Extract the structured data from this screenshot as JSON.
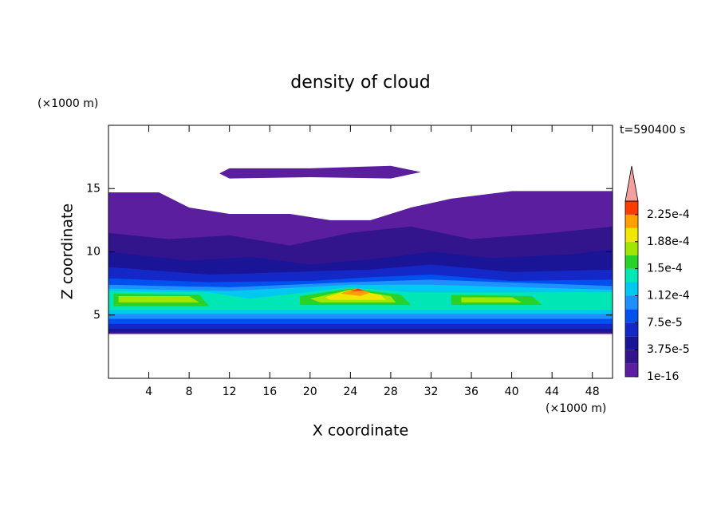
{
  "chart_data": {
    "type": "contour",
    "title": "density of cloud",
    "x_label": "X coordinate",
    "y_label": "Z coordinate",
    "x_unit": "(×1000 m)",
    "y_unit": "(×1000 m)",
    "time_label": "t=590400 s",
    "xlim": [
      0,
      50
    ],
    "xticks": [
      4,
      8,
      12,
      16,
      20,
      24,
      28,
      32,
      36,
      40,
      44,
      48
    ],
    "ylim": [
      0,
      20
    ],
    "yticks": [
      5,
      10,
      15
    ],
    "colorbar": {
      "levels": [
        1e-16,
        1.875e-05,
        3.75e-05,
        5.625e-05,
        7.5e-05,
        9.375e-05,
        0.0001125,
        0.00013125,
        0.00015,
        0.00016875,
        0.0001875,
        0.00020625,
        0.000225,
        0.00024375
      ],
      "colors": [
        "#5a1e9e",
        "#32148c",
        "#1a1496",
        "#1428c8",
        "#0050f0",
        "#1e90ff",
        "#00c8f0",
        "#00e6b4",
        "#28d228",
        "#a0e600",
        "#f0e600",
        "#ffa000",
        "#ff3c00"
      ],
      "extend_color": "#f4a0a0",
      "ticks": [
        1e-16,
        {
          "value": 3.75e-05,
          "label": "3.75e-5"
        },
        {
          "value": 7.5e-05,
          "label": "7.5e-5"
        },
        {
          "value": 0.0001125,
          "label": "1.12e-4"
        },
        {
          "value": 0.00015,
          "label": "1.5e-4"
        },
        {
          "value": 0.0001875,
          "label": "1.88e-4"
        },
        {
          "value": 0.000225,
          "label": "2.25e-4"
        }
      ]
    },
    "contours": [
      {
        "level": 1e-16,
        "x": [
          0,
          5,
          8,
          12,
          18,
          22,
          26,
          30,
          34,
          40,
          50,
          50,
          0
        ],
        "z": [
          14.7,
          14.7,
          13.5,
          13,
          13,
          12.5,
          12.5,
          13.5,
          14.2,
          14.8,
          14.8,
          3.5,
          3.5
        ]
      },
      {
        "level": 1e-16,
        "x": [
          11,
          12,
          20,
          28,
          31,
          28,
          20,
          12
        ],
        "z": [
          16.2,
          16.6,
          16.6,
          16.8,
          16.3,
          15.8,
          15.9,
          15.8
        ]
      },
      {
        "level": 1.875e-05,
        "x": [
          0,
          6,
          12,
          18,
          24,
          30,
          36,
          44,
          50,
          50,
          0
        ],
        "z": [
          11.5,
          11,
          11.3,
          10.5,
          11.5,
          12,
          11,
          11.5,
          12,
          3.6,
          3.6
        ]
      },
      {
        "level": 3.75e-05,
        "x": [
          0,
          8,
          14,
          20,
          26,
          32,
          38,
          46,
          50,
          50,
          0
        ],
        "z": [
          10,
          9.3,
          9.6,
          9,
          9.4,
          10,
          9.5,
          9.8,
          10.2,
          3.7,
          3.7
        ]
      },
      {
        "level": 5.625e-05,
        "x": [
          0,
          10,
          18,
          26,
          32,
          40,
          50,
          50,
          0
        ],
        "z": [
          8.8,
          8.2,
          8.4,
          8.6,
          9,
          8.4,
          8.6,
          3.9,
          3.9
        ]
      },
      {
        "level": 7.5e-05,
        "x": [
          0,
          10,
          20,
          26,
          32,
          40,
          50,
          50,
          0
        ],
        "z": [
          7.9,
          7.6,
          7.7,
          8,
          8.2,
          7.7,
          7.8,
          4.3,
          4.3
        ]
      },
      {
        "level": 9.375e-05,
        "x": [
          0,
          12,
          24,
          32,
          50,
          50,
          0
        ],
        "z": [
          7.4,
          7.2,
          7.6,
          7.8,
          7.3,
          4.7,
          4.7
        ]
      },
      {
        "level": 0.0001125,
        "x": [
          0,
          12,
          24,
          32,
          50,
          50,
          0
        ],
        "z": [
          7.1,
          6.9,
          7.4,
          7.4,
          7,
          5.1,
          5.1
        ]
      },
      {
        "level": 0.00013125,
        "x": [
          0,
          10,
          14,
          24,
          30,
          34,
          50,
          50,
          0
        ],
        "z": [
          6.9,
          6.8,
          6.3,
          7.2,
          6.8,
          6.8,
          6.8,
          5.4,
          5.4
        ]
      },
      {
        "level": 0.00015,
        "x": [
          0.5,
          9,
          10,
          0.5
        ],
        "z": [
          6.7,
          6.6,
          5.7,
          5.7
        ]
      },
      {
        "level": 0.00015,
        "x": [
          19,
          24,
          29,
          30,
          19
        ],
        "z": [
          6.5,
          7.1,
          6.6,
          5.8,
          5.8
        ]
      },
      {
        "level": 0.00015,
        "x": [
          34,
          42,
          43,
          34
        ],
        "z": [
          6.6,
          6.5,
          5.8,
          5.8
        ]
      },
      {
        "level": 0.00016875,
        "x": [
          1,
          8,
          9,
          1
        ],
        "z": [
          6.5,
          6.5,
          6,
          6
        ]
      },
      {
        "level": 0.00016875,
        "x": [
          20,
          24,
          28,
          28.5,
          21
        ],
        "z": [
          6.3,
          7,
          6.5,
          6,
          6
        ]
      },
      {
        "level": 0.00016875,
        "x": [
          35,
          40,
          41,
          35
        ],
        "z": [
          6.4,
          6.4,
          6,
          6
        ]
      },
      {
        "level": 0.0001875,
        "x": [
          21.5,
          24,
          27,
          27.5,
          22
        ],
        "z": [
          6.4,
          7,
          6.6,
          6.2,
          6.2
        ]
      },
      {
        "level": 0.00020625,
        "x": [
          23,
          24.5,
          26,
          25
        ],
        "z": [
          6.7,
          7.1,
          6.8,
          6.5
        ]
      },
      {
        "level": 0.000225,
        "x": [
          24,
          24.8,
          25.4
        ],
        "z": [
          6.9,
          7.1,
          6.9
        ]
      }
    ]
  }
}
